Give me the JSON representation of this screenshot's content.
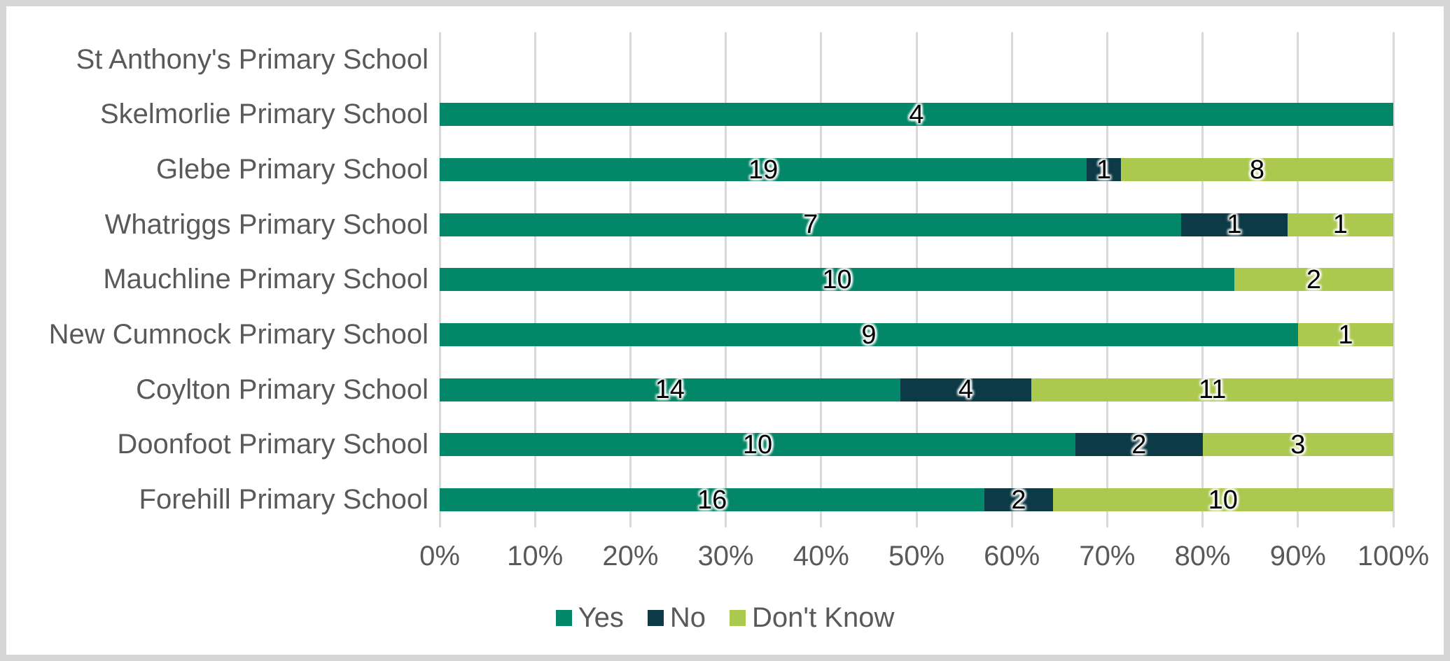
{
  "chart_data": {
    "type": "bar",
    "orientation": "horizontal",
    "stacked": true,
    "percent_stacked": true,
    "title": "",
    "xlabel": "",
    "ylabel": "",
    "categories": [
      "St Anthony's Primary School",
      "Skelmorlie Primary School",
      "Glebe Primary School",
      "Whatriggs Primary School",
      "Mauchline Primary School",
      "New Cumnock Primary School",
      "Coylton Primary School",
      "Doonfoot Primary School",
      "Forehill Primary School"
    ],
    "series": [
      {
        "name": "Yes",
        "color": "#028768",
        "values": [
          0,
          4,
          19,
          7,
          10,
          9,
          14,
          10,
          16
        ]
      },
      {
        "name": "No",
        "color": "#0C3A46",
        "values": [
          0,
          0,
          1,
          1,
          0,
          0,
          4,
          2,
          2
        ]
      },
      {
        "name": "Don't Know",
        "color": "#ACC94F",
        "values": [
          0,
          0,
          8,
          1,
          2,
          1,
          11,
          3,
          10
        ]
      }
    ],
    "x_ticks": [
      "0%",
      "10%",
      "20%",
      "30%",
      "40%",
      "50%",
      "60%",
      "70%",
      "80%",
      "90%",
      "100%"
    ],
    "xlim": [
      0,
      100
    ],
    "grid": true,
    "gridline_color": "#d9d9d9",
    "legend_position": "bottom"
  },
  "styles": {
    "text_color": "#595959",
    "data_label_color": "#000000",
    "background": "#ffffff",
    "frame_color": "#d6d6d6"
  }
}
